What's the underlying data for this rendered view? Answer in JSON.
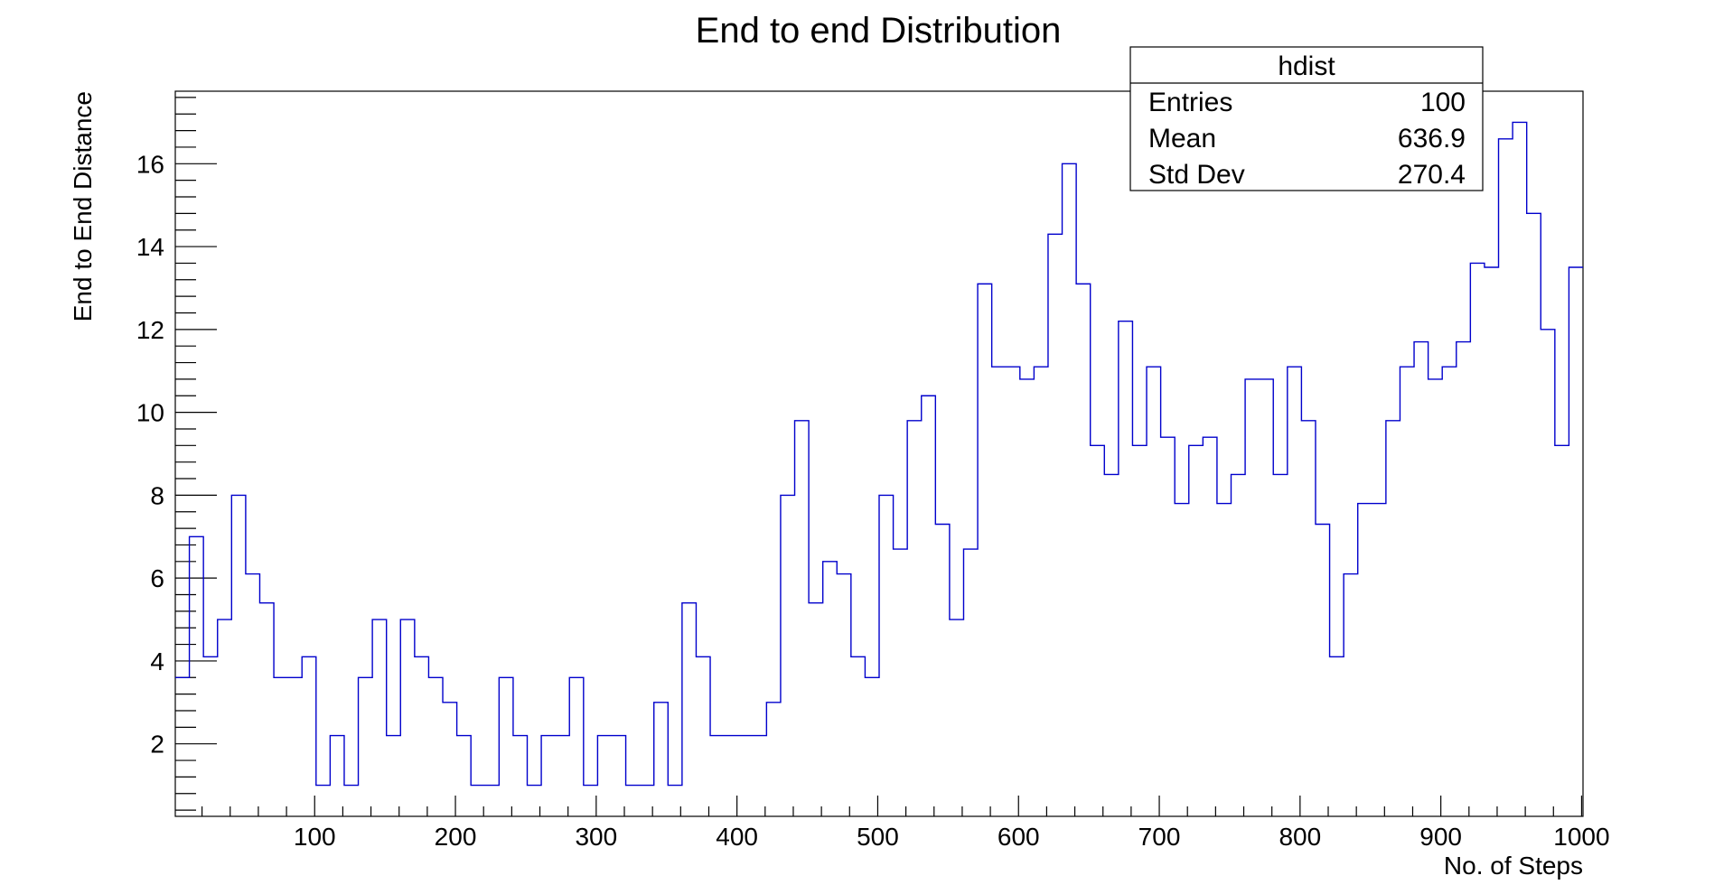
{
  "chart_data": {
    "type": "histogram",
    "title": "End to end Distribution",
    "xlabel": "No. of Steps",
    "ylabel": "End to End Distance",
    "xlim": [
      1,
      1001
    ],
    "ylim": [
      0.25,
      17.75
    ],
    "bin_width": 10,
    "xticks_major": [
      100,
      200,
      300,
      400,
      500,
      600,
      700,
      800,
      900,
      1000
    ],
    "xticks_minor_step": 20,
    "yticks_major": [
      2,
      4,
      6,
      8,
      10,
      12,
      14,
      16
    ],
    "yticks_minor_step": 0.4,
    "grid": false,
    "line_color": "#0000cc",
    "values": [
      3.6,
      7.0,
      4.1,
      5.0,
      8.0,
      6.1,
      5.4,
      3.6,
      3.6,
      4.1,
      1.0,
      2.2,
      1.0,
      3.6,
      5.0,
      2.2,
      5.0,
      4.1,
      3.6,
      3.0,
      2.2,
      1.0,
      1.0,
      3.6,
      2.2,
      1.0,
      2.2,
      2.2,
      3.6,
      1.0,
      2.2,
      2.2,
      1.0,
      1.0,
      3.0,
      1.0,
      5.4,
      4.1,
      2.2,
      2.2,
      2.2,
      2.2,
      3.0,
      8.0,
      9.8,
      5.4,
      6.4,
      6.1,
      4.1,
      3.6,
      8.0,
      6.7,
      9.8,
      10.4,
      7.3,
      5.0,
      6.7,
      13.1,
      11.1,
      11.1,
      10.8,
      11.1,
      14.3,
      16.0,
      13.1,
      9.2,
      8.5,
      12.2,
      9.2,
      11.1,
      9.4,
      7.8,
      9.2,
      9.4,
      7.8,
      8.5,
      10.8,
      10.8,
      8.5,
      11.1,
      9.8,
      7.3,
      4.1,
      6.1,
      7.8,
      7.8,
      9.8,
      11.1,
      11.7,
      10.8,
      11.1,
      11.7,
      13.6,
      13.5,
      16.6,
      17.0,
      14.8,
      12.0,
      9.2,
      13.5
    ]
  },
  "stats_box": {
    "title": "hdist",
    "rows": [
      {
        "label": "Entries",
        "value": "100"
      },
      {
        "label": "Mean",
        "value": "636.9"
      },
      {
        "label": "Std Dev",
        "value": "270.4"
      }
    ]
  }
}
